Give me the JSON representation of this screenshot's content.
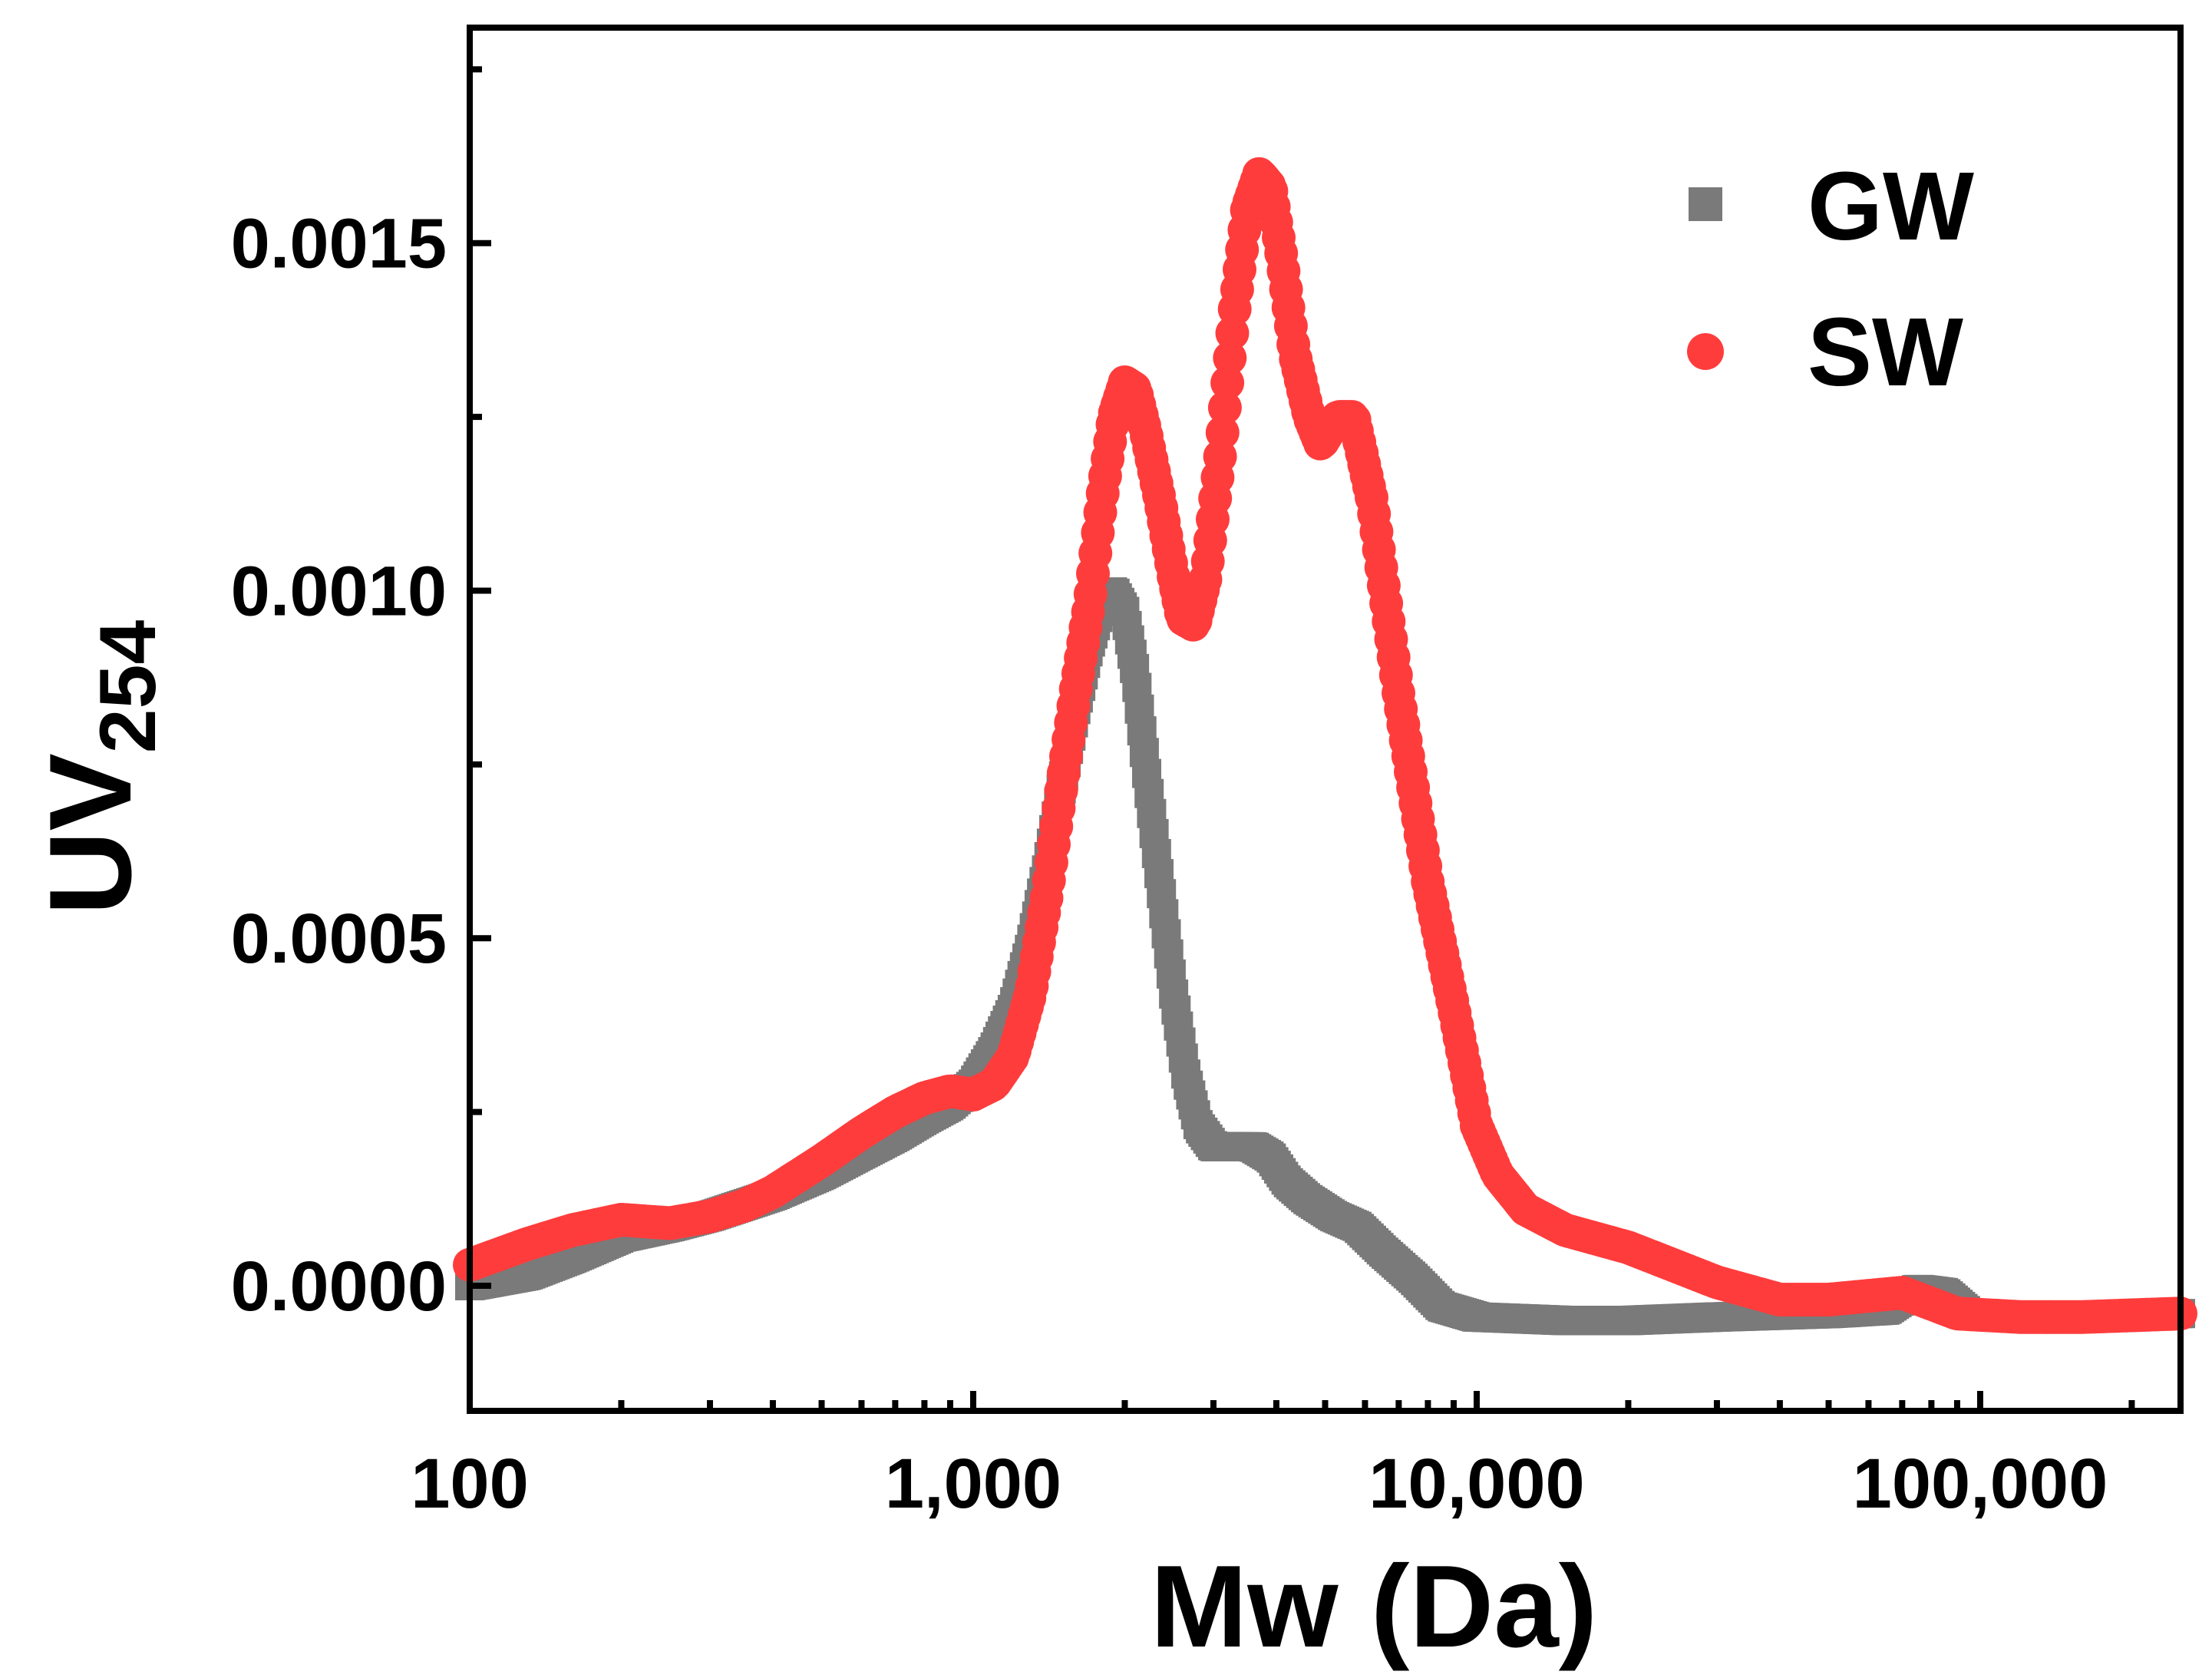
{
  "chart_data": {
    "type": "line",
    "title": "",
    "xlabel": "Mw (Da)",
    "ylabel_main": "UV",
    "ylabel_sub": "254",
    "x_scale": "log",
    "xlim": [
      100,
      250000
    ],
    "ylim": [
      -0.00018,
      0.00181
    ],
    "x_ticks": [
      {
        "value": 100,
        "label": "100"
      },
      {
        "value": 1000,
        "label": "1,000"
      },
      {
        "value": 10000,
        "label": "10,000"
      },
      {
        "value": 100000,
        "label": "100,000"
      }
    ],
    "y_ticks": [
      {
        "value": 0.0,
        "label": "0.0000"
      },
      {
        "value": 0.0005,
        "label": "0.0005"
      },
      {
        "value": 0.001,
        "label": "0.0010"
      },
      {
        "value": 0.0015,
        "label": "0.0015"
      }
    ],
    "grid": false,
    "legend_position": "top-right",
    "series": [
      {
        "name": "GW",
        "marker": "square",
        "color": "#7a7a7a",
        "points": [
          [
            100,
            0.0
          ],
          [
            130,
            1.5e-05
          ],
          [
            160,
            4e-05
          ],
          [
            200,
            7e-05
          ],
          [
            250,
            8.5e-05
          ],
          [
            300,
            0.0001
          ],
          [
            400,
            0.00013
          ],
          [
            500,
            0.00016
          ],
          [
            600,
            0.00019
          ],
          [
            700,
            0.000215
          ],
          [
            800,
            0.00024
          ],
          [
            900,
            0.00026
          ],
          [
            1000,
            0.00029
          ],
          [
            1100,
            0.00034
          ],
          [
            1200,
            0.0004
          ],
          [
            1300,
            0.00049
          ],
          [
            1400,
            0.0006
          ],
          [
            1500,
            0.00072
          ],
          [
            1600,
            0.00083
          ],
          [
            1700,
            0.00092
          ],
          [
            1800,
            0.00098
          ],
          [
            1900,
            0.001
          ],
          [
            2000,
            0.00097
          ],
          [
            2100,
            0.00088
          ],
          [
            2200,
            0.00075
          ],
          [
            2350,
            0.00058
          ],
          [
            2500,
            0.00042
          ],
          [
            2650,
            0.0003
          ],
          [
            2800,
            0.00023
          ],
          [
            3000,
            0.0002
          ],
          [
            3300,
            0.0002
          ],
          [
            3600,
            0.0002
          ],
          [
            3900,
            0.000185
          ],
          [
            4200,
            0.00015
          ],
          [
            4600,
            0.000125
          ],
          [
            5200,
            0.0001
          ],
          [
            5800,
            8.5e-05
          ],
          [
            6500,
            5e-05
          ],
          [
            7500,
            1e-05
          ],
          [
            8500,
            -3e-05
          ],
          [
            10000,
            -4.5e-05
          ],
          [
            15000,
            -5e-05
          ],
          [
            20000,
            -5e-05
          ],
          [
            30000,
            -4.5e-05
          ],
          [
            50000,
            -4e-05
          ],
          [
            65000,
            -3.5e-05
          ],
          [
            75000,
            -5e-06
          ],
          [
            85000,
            -1e-05
          ],
          [
            95000,
            -4e-05
          ],
          [
            120000,
            -4.5e-05
          ],
          [
            160000,
            -4.5e-05
          ],
          [
            250000,
            -4e-05
          ]
        ]
      },
      {
        "name": "SW",
        "marker": "circle",
        "color": "#ff3c3c",
        "points": [
          [
            100,
            3e-05
          ],
          [
            130,
            6e-05
          ],
          [
            160,
            8e-05
          ],
          [
            200,
            9.5e-05
          ],
          [
            250,
            9e-05
          ],
          [
            300,
            0.0001
          ],
          [
            350,
            0.000115
          ],
          [
            400,
            0.000135
          ],
          [
            500,
            0.00018
          ],
          [
            600,
            0.00022
          ],
          [
            700,
            0.00025
          ],
          [
            800,
            0.00027
          ],
          [
            900,
            0.00028
          ],
          [
            1000,
            0.000275
          ],
          [
            1100,
            0.00029
          ],
          [
            1200,
            0.00033
          ],
          [
            1300,
            0.00042
          ],
          [
            1400,
            0.00056
          ],
          [
            1500,
            0.00072
          ],
          [
            1600,
            0.00086
          ],
          [
            1700,
            0.00098
          ],
          [
            1800,
            0.00113
          ],
          [
            1900,
            0.00125
          ],
          [
            2000,
            0.0013
          ],
          [
            2100,
            0.00129
          ],
          [
            2200,
            0.00123
          ],
          [
            2350,
            0.00113
          ],
          [
            2500,
            0.00102
          ],
          [
            2600,
            0.00096
          ],
          [
            2750,
            0.00095
          ],
          [
            2900,
            0.00102
          ],
          [
            3100,
            0.0012
          ],
          [
            3300,
            0.0014
          ],
          [
            3500,
            0.00155
          ],
          [
            3700,
            0.0016
          ],
          [
            3900,
            0.00158
          ],
          [
            4100,
            0.00148
          ],
          [
            4350,
            0.00134
          ],
          [
            4650,
            0.00125
          ],
          [
            4900,
            0.00121
          ],
          [
            5300,
            0.00125
          ],
          [
            5700,
            0.00125
          ],
          [
            6200,
            0.00113
          ],
          [
            7000,
            0.00085
          ],
          [
            8000,
            0.00058
          ],
          [
            9000,
            0.0004
          ],
          [
            10000,
            0.00023
          ],
          [
            11000,
            0.00016
          ],
          [
            12500,
            0.00011
          ],
          [
            15000,
            8e-05
          ],
          [
            20000,
            5.5e-05
          ],
          [
            30000,
            5e-06
          ],
          [
            40000,
            -2e-05
          ],
          [
            50000,
            -2e-05
          ],
          [
            70000,
            -1e-05
          ],
          [
            90000,
            -4e-05
          ],
          [
            120000,
            -4.5e-05
          ],
          [
            160000,
            -4.5e-05
          ],
          [
            250000,
            -4e-05
          ]
        ]
      }
    ]
  }
}
